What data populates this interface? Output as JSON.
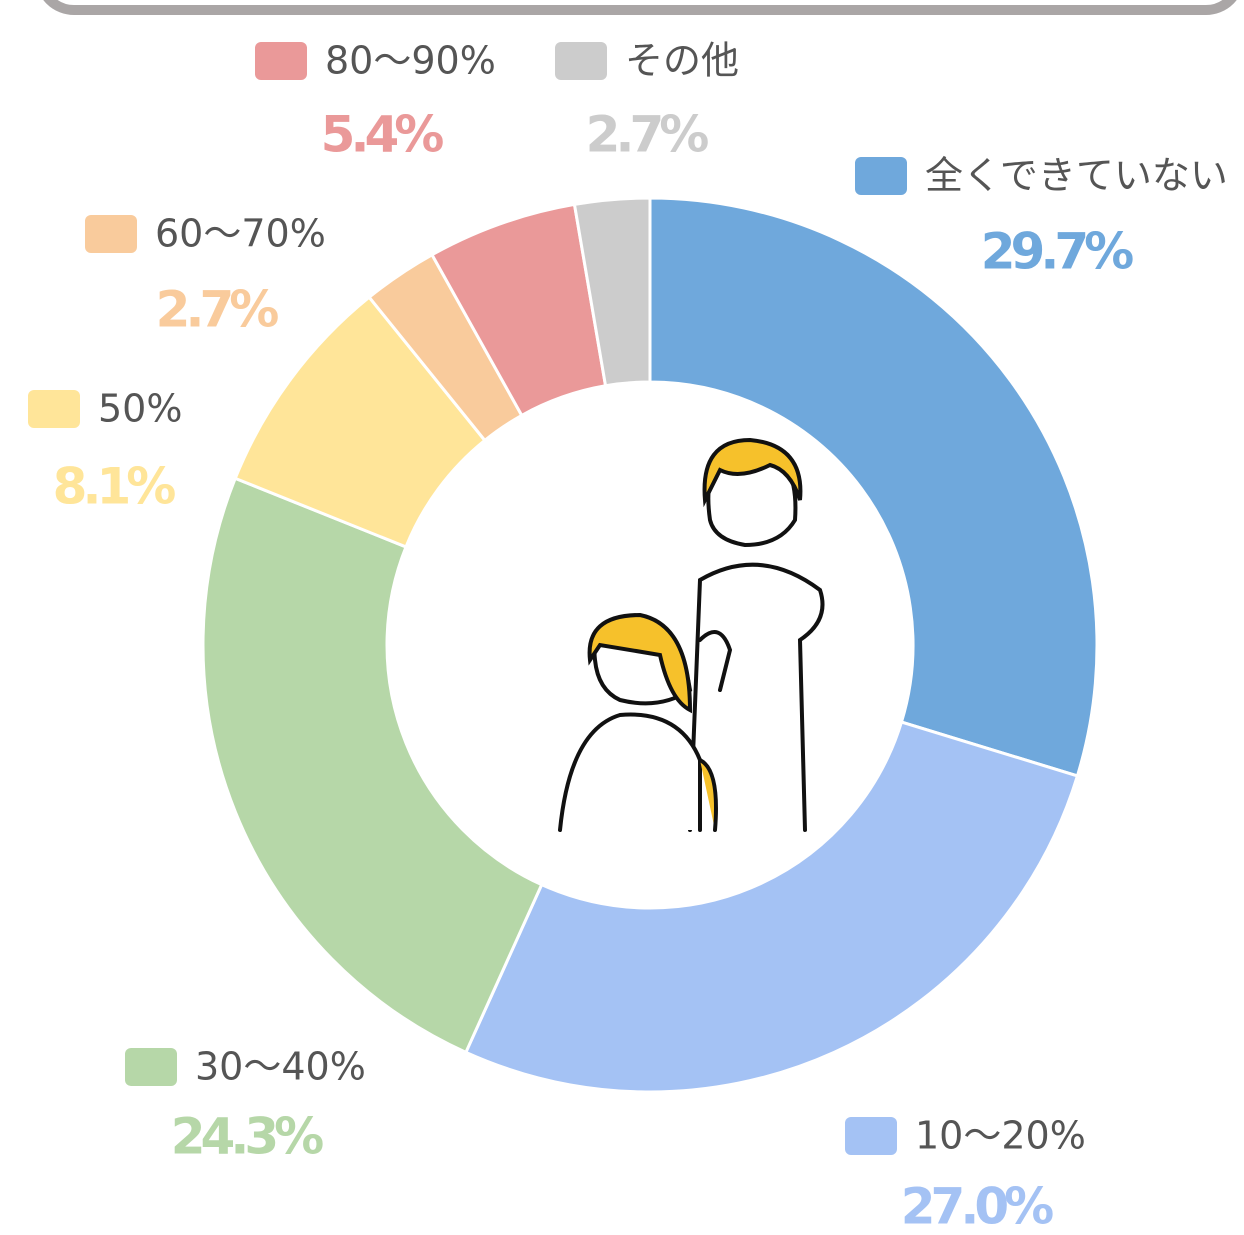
{
  "chart_data": {
    "type": "pie",
    "donut": true,
    "categories": [
      "全くできていない",
      "10～20%",
      "30～40%",
      "50%",
      "60～70%",
      "80～90%",
      "その他"
    ],
    "values": [
      29.7,
      27.0,
      24.3,
      8.1,
      2.7,
      5.4,
      2.7
    ],
    "value_labels": [
      "29.7%",
      "27.0%",
      "24.3%",
      "8.1%",
      "2.7%",
      "5.4%",
      "2.7%"
    ],
    "colors": [
      "#6fa8dc",
      "#a4c2f4",
      "#b6d7a8",
      "#ffe599",
      "#f9cb9c",
      "#ea9999",
      "#cccccc"
    ]
  }
}
